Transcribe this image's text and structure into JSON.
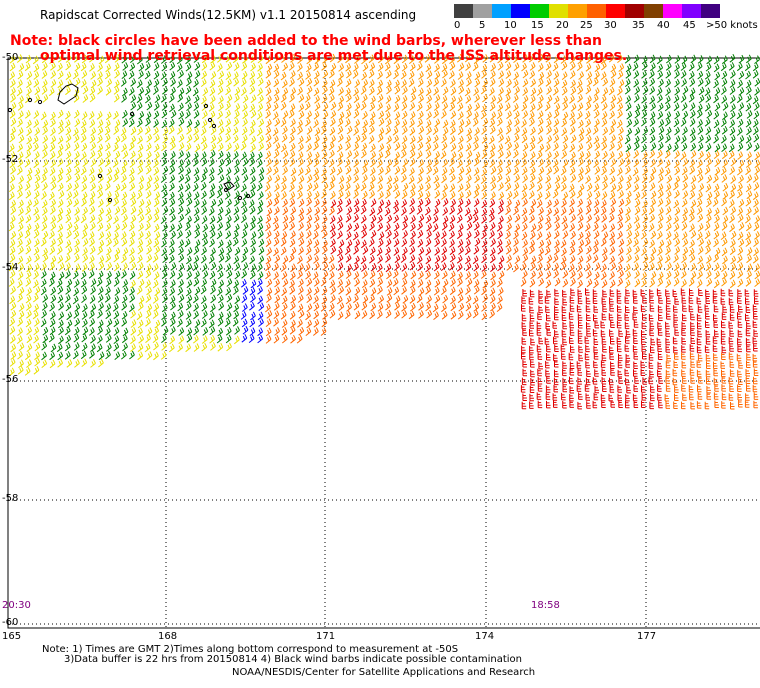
{
  "title": "Rapidscat Corrected Winds(12.5KM) v1.1 20150814 ascending",
  "note_line1": "Note: black circles have been added to the wind barbs, wherever less than",
  "note_line2": "optimal wind retrieval conditions are met due to the ISS altitude changes.",
  "legend": {
    "labels": [
      "0",
      "5",
      "10",
      "15",
      "20",
      "25",
      "30",
      "35",
      "40",
      "45",
      ">50 knots"
    ],
    "colors": [
      "#404040",
      "#a0a0a0",
      "#00a0ff",
      "#0000ff",
      "#00cc00",
      "#e0e000",
      "#ffa000",
      "#ff6000",
      "#ff0000",
      "#a00000",
      "#804000",
      "#ff00ff",
      "#8000ff",
      "#400080"
    ]
  },
  "latitudes": [
    "-50",
    "-52",
    "-54",
    "-56",
    "-58",
    "-60"
  ],
  "longitudes": [
    "165",
    "168",
    "171",
    "174",
    "177"
  ],
  "time_left": "20:30",
  "time_right": "18:58",
  "footer_line1": "Note: 1) Times are GMT 2)Times along bottom correspond to measurement at -50S",
  "footer_line2": "3)Data buffer is 22 hrs from 20150814 4) Black wind barbs indicate possible contamination",
  "footer_line3": "NOAA/NESDIS/Center for Satellite Applications and Research",
  "wind_colors": {
    "light": "#ff0000",
    "green": "#008000",
    "yellow": "#e8e000",
    "orange": "#ff9900",
    "red": "#e00000",
    "darkorange": "#ff6600",
    "blue": "#0000ff"
  }
}
